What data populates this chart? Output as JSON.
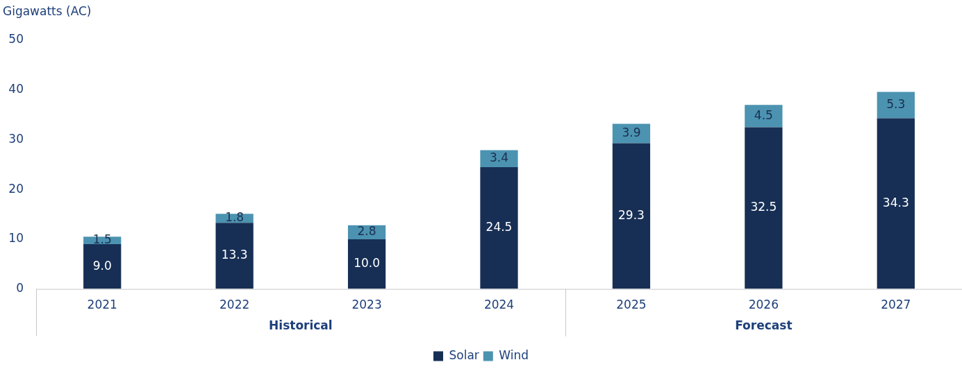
{
  "chart_data": {
    "type": "bar",
    "stacked": true,
    "ylabel": "Gigawatts (AC)",
    "categories": [
      "2021",
      "2022",
      "2023",
      "2024",
      "2025",
      "2026",
      "2027"
    ],
    "series": [
      {
        "name": "Solar",
        "color": "#172f55",
        "values": [
          9.0,
          13.3,
          10.0,
          24.5,
          29.3,
          32.5,
          34.3
        ],
        "value_labels": [
          "9.0",
          "13.3",
          "10.0",
          "24.5",
          "29.3",
          "32.5",
          "34.3"
        ]
      },
      {
        "name": "Wind",
        "color": "#4b93b1",
        "values": [
          1.5,
          1.8,
          2.8,
          3.4,
          3.9,
          4.5,
          5.3
        ],
        "value_labels": [
          "1.5",
          "1.8",
          "2.8",
          "3.4",
          "3.9",
          "4.5",
          "5.3"
        ]
      }
    ],
    "ylim": [
      0,
      50
    ],
    "yticks": [
      0,
      10,
      20,
      30,
      40,
      50
    ],
    "grid": false,
    "legend": "bottom",
    "annotations": [
      "Historical",
      "Forecast"
    ]
  }
}
